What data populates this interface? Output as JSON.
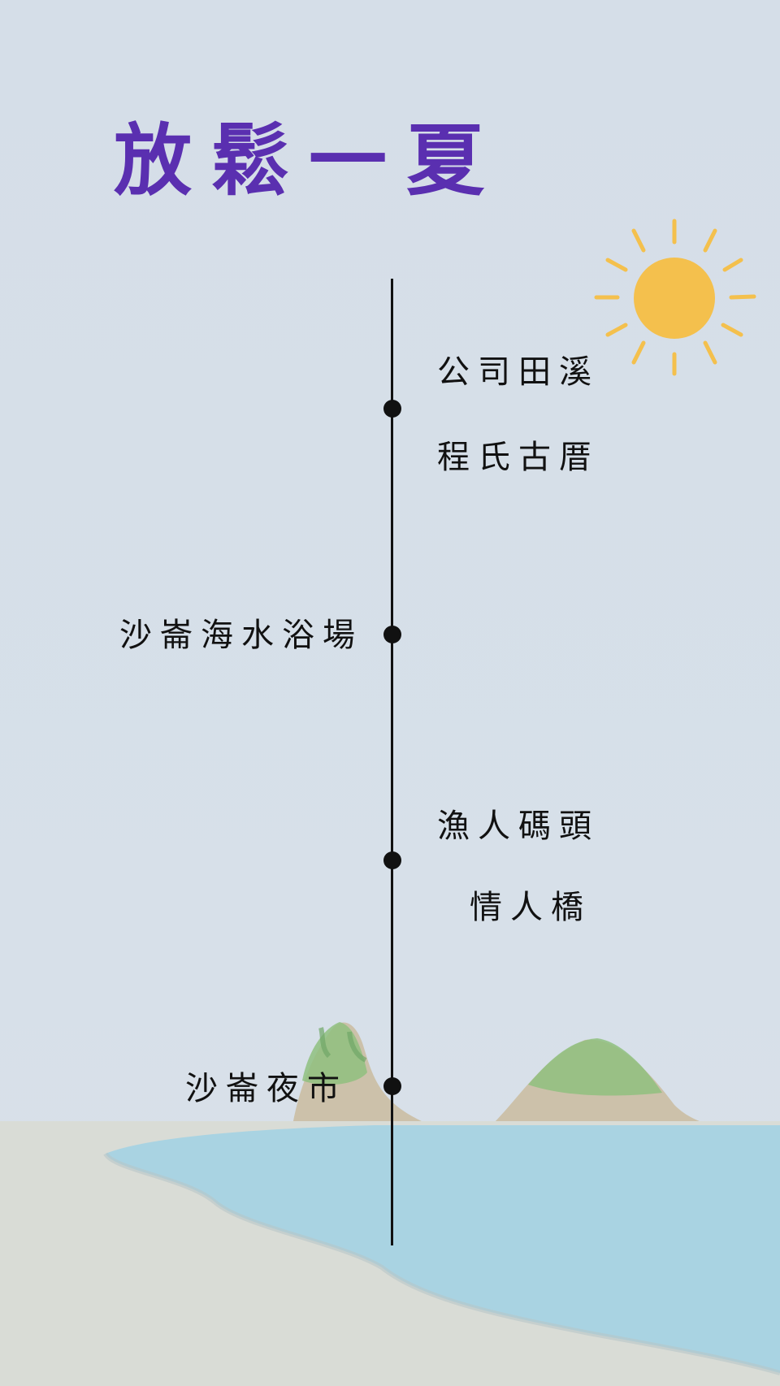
{
  "title": "放鬆一夏",
  "timeline": {
    "stops": [
      {
        "side": "right",
        "lines": [
          "公司田溪",
          "程氏古厝"
        ]
      },
      {
        "side": "left",
        "lines": [
          "沙崙海水浴場"
        ]
      },
      {
        "side": "right",
        "lines": [
          "漁人碼頭",
          "情人橋"
        ]
      },
      {
        "side": "left",
        "lines": [
          "沙崙夜市"
        ]
      }
    ]
  },
  "icons": [
    "sun-icon"
  ],
  "colors": {
    "title": "#5a2fb0",
    "sky": "#d6dfe9",
    "sea": "#a9d3e2",
    "sand": "#d9dcd6",
    "sun": "#f4c04d",
    "text": "#111111"
  }
}
